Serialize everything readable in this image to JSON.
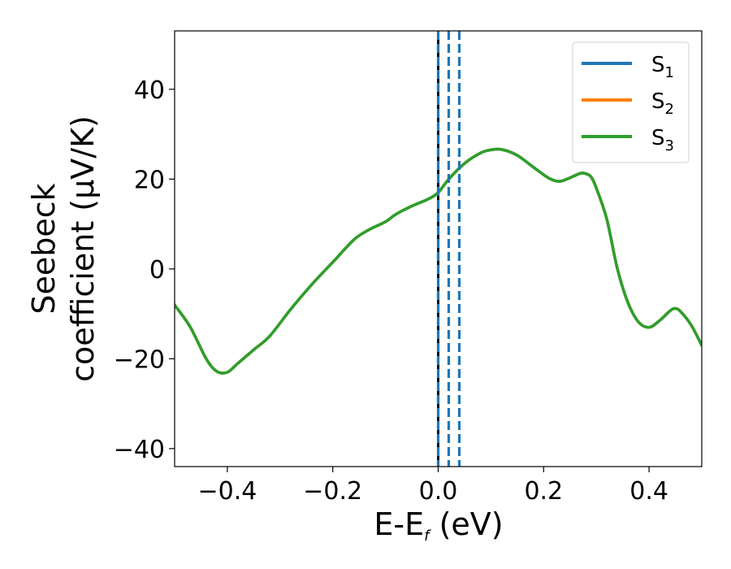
{
  "chart_data": {
    "type": "line",
    "title": "",
    "xlabel": {
      "main": "E-E",
      "sub": "f",
      "unit": " (eV)"
    },
    "ylabel": {
      "line1": "Seebeck",
      "line2": "coefficient  (μV/K)"
    },
    "xlim": [
      -0.5,
      0.5
    ],
    "ylim": [
      -44,
      53
    ],
    "x_ticks": [
      -0.4,
      -0.2,
      0.0,
      0.2,
      0.4
    ],
    "x_tick_labels": [
      "−0.4",
      "−0.2",
      "0.0",
      "0.2",
      "0.4"
    ],
    "y_ticks": [
      -40,
      -20,
      0,
      20,
      40
    ],
    "y_tick_labels": [
      "−40",
      "−20",
      "0",
      "20",
      "40"
    ],
    "grid": false,
    "legend_position": "top-right",
    "series": [
      {
        "name": "S",
        "sub": "1",
        "color": "#1f77b4"
      },
      {
        "name": "S",
        "sub": "2",
        "color": "#ff7f0e"
      },
      {
        "name": "S",
        "sub": "3",
        "color": "#2ca02c"
      }
    ],
    "curve": {
      "x": [
        -0.5,
        -0.47,
        -0.44,
        -0.42,
        -0.4,
        -0.38,
        -0.35,
        -0.32,
        -0.28,
        -0.24,
        -0.2,
        -0.16,
        -0.13,
        -0.1,
        -0.08,
        -0.05,
        -0.02,
        0.0,
        0.02,
        0.05,
        0.08,
        0.1,
        0.12,
        0.15,
        0.18,
        0.21,
        0.23,
        0.25,
        0.27,
        0.28,
        0.29,
        0.3,
        0.32,
        0.34,
        0.36,
        0.38,
        0.4,
        0.42,
        0.44,
        0.45,
        0.46,
        0.48,
        0.5
      ],
      "y": [
        -8,
        -13,
        -20,
        -22.8,
        -23,
        -21,
        -18,
        -15,
        -9,
        -3.5,
        1.5,
        6.5,
        8.8,
        10.5,
        12.2,
        14,
        15.5,
        17,
        20,
        23.5,
        25.8,
        26.5,
        26.6,
        25.3,
        22.7,
        20.2,
        19.5,
        20.3,
        21.3,
        21.2,
        20.5,
        18,
        11,
        0,
        -7.5,
        -11.8,
        -13,
        -11.5,
        -9.3,
        -8.8,
        -9.5,
        -12.5,
        -17
      ]
    },
    "vlines": [
      {
        "x": 0.0,
        "style": "solid",
        "color": "#000000"
      },
      {
        "x": 0.0,
        "style": "dashed",
        "color": "#1f77b4"
      },
      {
        "x": 0.02,
        "style": "dashed",
        "color": "#1f77b4"
      },
      {
        "x": 0.04,
        "style": "dashed",
        "color": "#1f77b4"
      }
    ]
  }
}
